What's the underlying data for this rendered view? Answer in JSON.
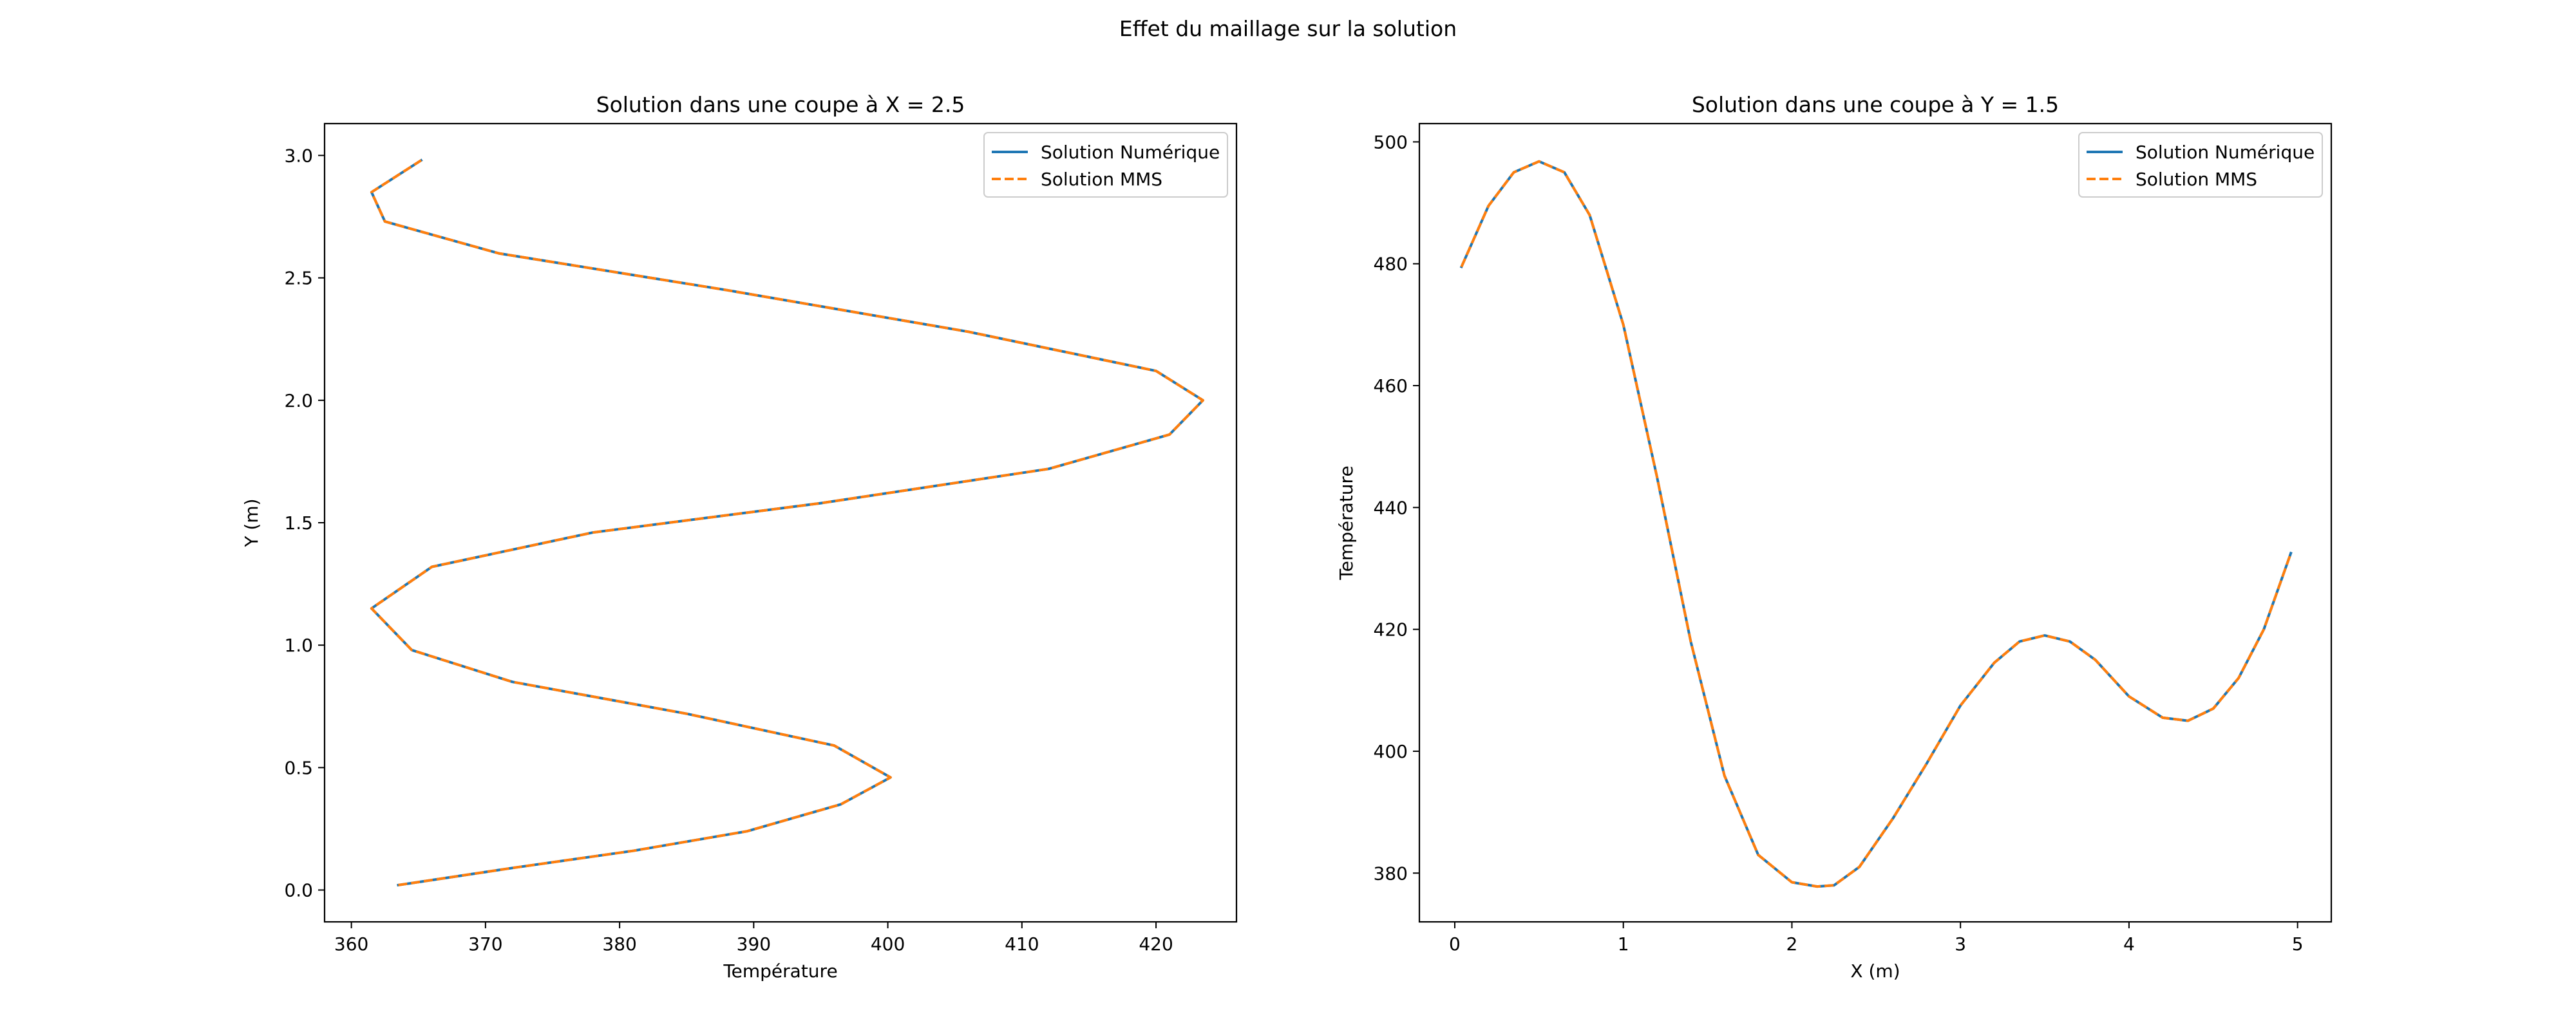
{
  "figure": {
    "suptitle": "Effet du maillage sur la solution"
  },
  "chart_data": [
    {
      "type": "line",
      "title": "Solution dans une coupe à X = 2.5",
      "xlabel": "Température",
      "ylabel": "Y (m)",
      "xlim": [
        358,
        426
      ],
      "ylim": [
        -0.13,
        3.13
      ],
      "xticks": [
        360,
        370,
        380,
        390,
        400,
        410,
        420
      ],
      "yticks": [
        0.0,
        0.5,
        1.0,
        1.5,
        2.0,
        2.5,
        3.0
      ],
      "xtick_labels": [
        "360",
        "370",
        "380",
        "390",
        "400",
        "410",
        "420"
      ],
      "ytick_labels": [
        "0.0",
        "0.5",
        "1.0",
        "1.5",
        "2.0",
        "2.5",
        "3.0"
      ],
      "legend": {
        "placement": "top-right",
        "entries": [
          "Solution Numérique",
          "Solution MMS"
        ]
      },
      "grid": false,
      "series": [
        {
          "name": "Solution Numérique",
          "color": "#1f77b4",
          "style": "solid",
          "x": [
            363.5,
            372.0,
            381.0,
            389.5,
            396.5,
            400.2,
            396.0,
            385.0,
            372.0,
            364.5,
            361.5,
            366.0,
            378.0,
            395.0,
            412.0,
            421.0,
            423.5,
            420.0,
            406.0,
            388.0,
            371.0,
            362.5,
            361.5,
            365.2
          ],
          "y": [
            0.02,
            0.09,
            0.16,
            0.24,
            0.35,
            0.46,
            0.59,
            0.72,
            0.85,
            0.98,
            1.15,
            1.32,
            1.46,
            1.58,
            1.72,
            1.86,
            2.0,
            2.12,
            2.28,
            2.45,
            2.6,
            2.73,
            2.85,
            2.98
          ]
        },
        {
          "name": "Solution MMS",
          "color": "#ff7f0e",
          "style": "dashed",
          "x": [
            363.5,
            372.0,
            381.0,
            389.5,
            396.5,
            400.2,
            396.0,
            385.0,
            372.0,
            364.5,
            361.5,
            366.0,
            378.0,
            395.0,
            412.0,
            421.0,
            423.5,
            420.0,
            406.0,
            388.0,
            371.0,
            362.5,
            361.5,
            365.2
          ],
          "y": [
            0.02,
            0.09,
            0.16,
            0.24,
            0.35,
            0.46,
            0.59,
            0.72,
            0.85,
            0.98,
            1.15,
            1.32,
            1.46,
            1.58,
            1.72,
            1.86,
            2.0,
            2.12,
            2.28,
            2.45,
            2.6,
            2.73,
            2.85,
            2.98
          ]
        }
      ]
    },
    {
      "type": "line",
      "title": "Solution dans une coupe à Y = 1.5",
      "xlabel": "X (m)",
      "ylabel": "Température",
      "xlim": [
        -0.21,
        5.2
      ],
      "ylim": [
        372,
        503
      ],
      "xticks": [
        0,
        1,
        2,
        3,
        4,
        5
      ],
      "yticks": [
        380,
        400,
        420,
        440,
        460,
        480,
        500
      ],
      "xtick_labels": [
        "0",
        "1",
        "2",
        "3",
        "4",
        "5"
      ],
      "ytick_labels": [
        "380",
        "400",
        "420",
        "440",
        "460",
        "480",
        "500"
      ],
      "legend": {
        "placement": "top-right",
        "entries": [
          "Solution Numérique",
          "Solution MMS"
        ]
      },
      "grid": false,
      "series": [
        {
          "name": "Solution Numérique",
          "color": "#1f77b4",
          "style": "solid",
          "x": [
            0.04,
            0.2,
            0.35,
            0.5,
            0.65,
            0.8,
            1.0,
            1.2,
            1.4,
            1.6,
            1.8,
            2.0,
            2.15,
            2.25,
            2.4,
            2.6,
            2.8,
            3.0,
            3.2,
            3.35,
            3.5,
            3.65,
            3.8,
            4.0,
            4.2,
            4.35,
            4.5,
            4.65,
            4.8,
            4.96
          ],
          "y": [
            479.5,
            489.5,
            495.0,
            496.8,
            495.0,
            488.0,
            470.0,
            445.0,
            418.0,
            396.0,
            383.0,
            378.5,
            377.8,
            378.0,
            381.0,
            389.0,
            398.0,
            407.5,
            414.5,
            418.0,
            419.0,
            418.0,
            415.0,
            409.0,
            405.5,
            405.0,
            407.0,
            412.0,
            420.0,
            432.5
          ]
        },
        {
          "name": "Solution MMS",
          "color": "#ff7f0e",
          "style": "dashed",
          "x": [
            0.04,
            0.2,
            0.35,
            0.5,
            0.65,
            0.8,
            1.0,
            1.2,
            1.4,
            1.6,
            1.8,
            2.0,
            2.15,
            2.25,
            2.4,
            2.6,
            2.8,
            3.0,
            3.2,
            3.35,
            3.5,
            3.65,
            3.8,
            4.0,
            4.2,
            4.35,
            4.5,
            4.65,
            4.8,
            4.96
          ],
          "y": [
            479.5,
            489.5,
            495.0,
            496.8,
            495.0,
            488.0,
            470.0,
            445.0,
            418.0,
            396.0,
            383.0,
            378.5,
            377.8,
            378.0,
            381.0,
            389.0,
            398.0,
            407.5,
            414.5,
            418.0,
            419.0,
            418.0,
            415.0,
            409.0,
            405.5,
            405.0,
            407.0,
            412.0,
            420.0,
            432.5
          ]
        }
      ]
    }
  ]
}
